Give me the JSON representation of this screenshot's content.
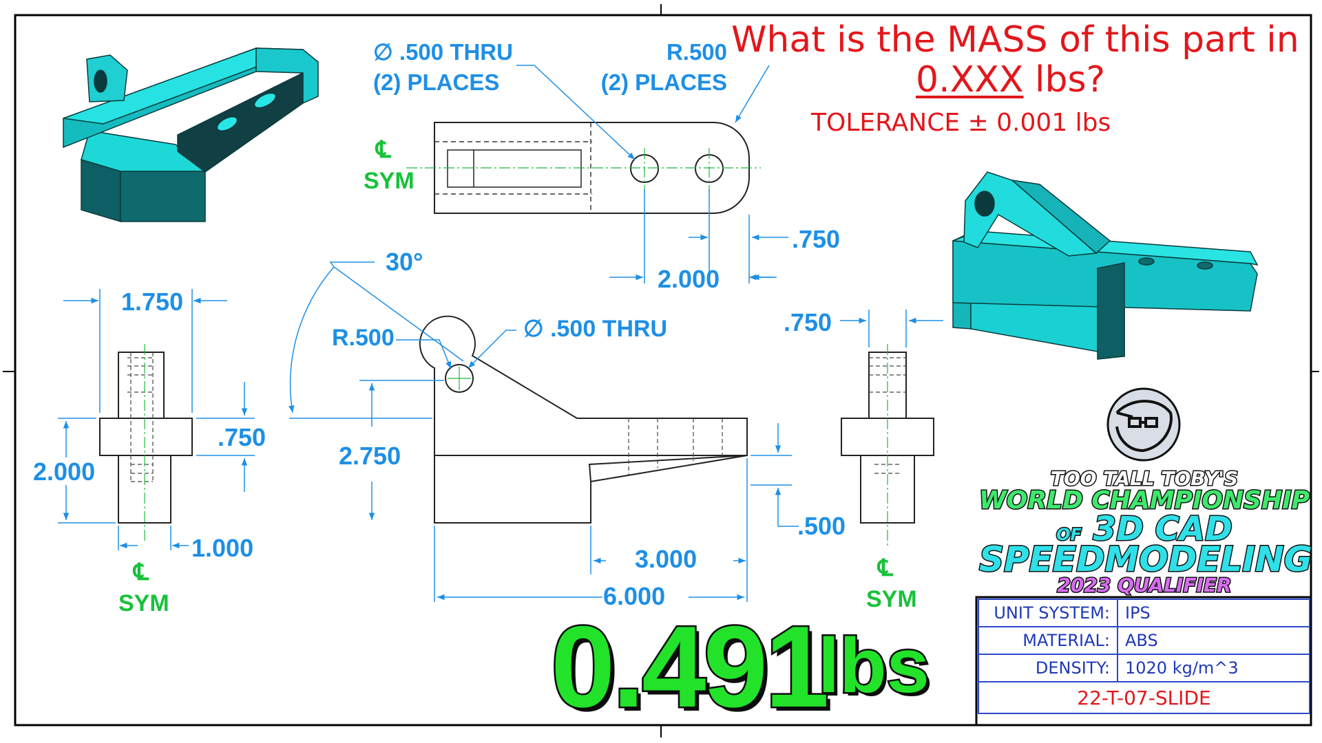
{
  "question": {
    "line1": "What is the MASS of this part in",
    "line2_underlined": "0.XXX",
    "line2_rest": " lbs?",
    "tolerance": "TOLERANCE ± 0.001 lbs"
  },
  "answer": {
    "value": "0.491",
    "unit": "lbs"
  },
  "dimensions": {
    "top_view": {
      "hole_callout_line1": "∅ .500 THRU",
      "hole_callout_line2": "(2) PLACES",
      "radius_callout_line1": "R.500",
      "radius_callout_line2": "(2) PLACES",
      "dim_750": ".750",
      "dim_2000": "2.000",
      "centerline_symbol": "℄",
      "centerline_label": "SYM"
    },
    "left_view": {
      "dim_1750": "1.750",
      "dim_2000": "2.000",
      "dim_750": ".750",
      "dim_1000": "1.000",
      "centerline_symbol": "℄",
      "centerline_label": "SYM"
    },
    "front_view": {
      "angle": "30°",
      "radius": "R.500",
      "hole": "∅ .500 THRU",
      "dim_2750": "2.750",
      "dim_3000": "3.000",
      "dim_6000": "6.000",
      "dim_500": ".500"
    },
    "right_view": {
      "dim_750": ".750",
      "centerline_symbol": "℄",
      "centerline_label": "SYM"
    }
  },
  "branding": {
    "line1": "TOO TALL TOBY'S",
    "line2": "WORLD CHAMPIONSHIP",
    "line3_small": "OF",
    "line3": "3D CAD",
    "line4": "SPEEDMODELING",
    "line5": "2023 QUALIFIER"
  },
  "title_block": {
    "rows": [
      {
        "label": "UNIT SYSTEM:",
        "value": "IPS"
      },
      {
        "label": "MATERIAL:",
        "value": "ABS"
      },
      {
        "label": "DENSITY:",
        "value": "1020  kg/m^3"
      }
    ],
    "drawing_id": "22-T-07-SLIDE"
  },
  "colors": {
    "dimension": "#1e8fe6",
    "centerline_label": "#17c23a",
    "question": "#e3161b",
    "answer_fill": "#22e22a",
    "part_cyan": "#19d6d6",
    "part_shadow": "#0e5f63"
  },
  "icons": [
    "too-tall-toby-logo-icon"
  ]
}
